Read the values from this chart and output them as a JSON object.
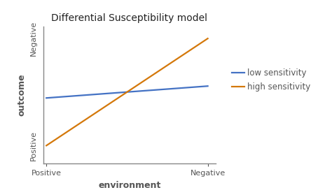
{
  "title": "Differential Susceptibility model",
  "xlabel": "environment",
  "ylabel": "outcome",
  "x_tick_labels": [
    "Positive",
    "Negative"
  ],
  "y_tick_label_bottom": "Positive",
  "y_tick_label_top": "Negative",
  "low_sensitivity": {
    "x": [
      0,
      1
    ],
    "y": [
      0.55,
      0.65
    ],
    "color": "#4472C4",
    "label": "low sensitivity",
    "linewidth": 1.6
  },
  "high_sensitivity": {
    "x": [
      0,
      1
    ],
    "y": [
      0.15,
      1.05
    ],
    "color": "#D4780A",
    "label": "high sensitivity",
    "linewidth": 1.6
  },
  "xlim": [
    -0.02,
    1.05
  ],
  "ylim": [
    0.0,
    1.15
  ],
  "y_tick_positions": [
    0.15,
    1.05
  ],
  "title_fontsize": 10,
  "axis_label_fontsize": 9,
  "tick_fontsize": 8,
  "legend_fontsize": 8.5,
  "background_color": "#ffffff",
  "spine_color": "#888888",
  "text_color": "#555555"
}
